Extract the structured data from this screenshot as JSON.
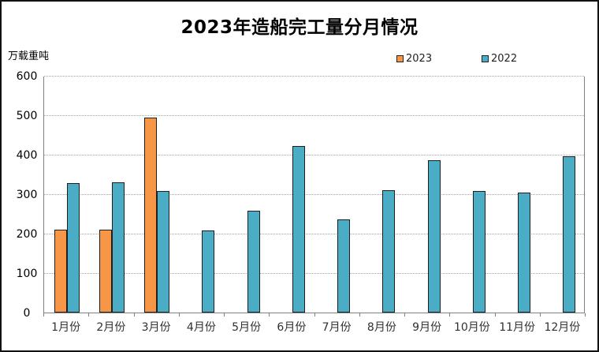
{
  "title": "2023年造船完工量分月情况",
  "y_axis_unit": "万载重吨",
  "colors": {
    "series_2023": "#F79646",
    "series_2022": "#4BACC6",
    "bar_border": "#1f1f1f",
    "gridline": "#a3a3a3",
    "axis_frame": "#808080"
  },
  "chart_data": {
    "type": "bar",
    "title": "2023年造船完工量分月情况",
    "ylabel": "万载重吨",
    "categories": [
      "1月份",
      "2月份",
      "3月份",
      "4月份",
      "5月份",
      "6月份",
      "7月份",
      "8月份",
      "9月份",
      "10月份",
      "11月份",
      "12月份"
    ],
    "series": [
      {
        "name": "2023",
        "color": "#F79646",
        "values": [
          210,
          210,
          494,
          null,
          null,
          null,
          null,
          null,
          null,
          null,
          null,
          null
        ]
      },
      {
        "name": "2022",
        "color": "#4BACC6",
        "values": [
          327,
          329,
          308,
          208,
          257,
          421,
          235,
          310,
          386,
          308,
          303,
          396
        ]
      }
    ],
    "ylim": [
      0,
      600
    ],
    "yticks": [
      0,
      100,
      200,
      300,
      400,
      500,
      600
    ],
    "grid": true,
    "legend_position": "top-right"
  }
}
